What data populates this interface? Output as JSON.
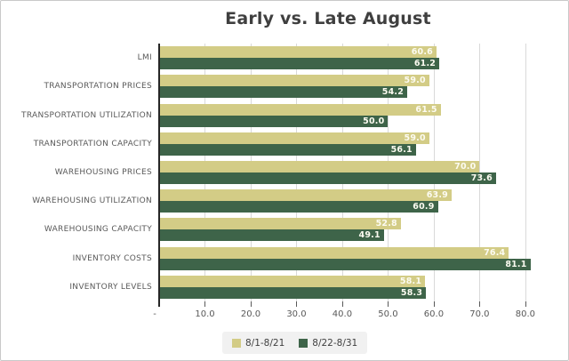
{
  "title": "Early vs. Late August",
  "chart_data": {
    "type": "bar",
    "orientation": "horizontal",
    "title": "Early vs. Late August",
    "categories": [
      "LMI",
      "TRANSPORTATION PRICES",
      "TRANSPORTATION UTILIZATION",
      "TRANSPORTATION CAPACITY",
      "WAREHOUSING PRICES",
      "WAREHOUSING UTILIZATION",
      "WAREHOUSING CAPACITY",
      "INVENTORY COSTS",
      "INVENTORY LEVELS"
    ],
    "series": [
      {
        "name": "8/1-8/21",
        "color": "#d3cc86",
        "values": [
          60.6,
          59.0,
          61.5,
          59.0,
          70.0,
          63.9,
          52.8,
          76.4,
          58.1
        ]
      },
      {
        "name": "8/22-8/31",
        "color": "#3e6449",
        "values": [
          61.2,
          54.2,
          50.0,
          56.1,
          73.6,
          60.9,
          49.1,
          81.1,
          58.3
        ]
      }
    ],
    "x_axis": {
      "tick_values": [
        0,
        10,
        20,
        30,
        40,
        50,
        60,
        70,
        80
      ],
      "tick_labels": [
        "-",
        "10.0",
        "20.0",
        "30.0",
        "40.0",
        "50.0",
        "60.0",
        "70.0",
        "80.0"
      ],
      "max": 87.4
    },
    "value_label_decimals": 1,
    "grid": true,
    "legend_position": "bottom"
  },
  "colors": {
    "title": "#3f3f3f",
    "axis_line": "#262626",
    "gridline": "#d9d9d9",
    "tick_label": "#595959",
    "category_label": "#595959",
    "value_label": "#fcfbf1",
    "legend_background": "#f1f1f1",
    "legend_text": "#404040",
    "frame_border": "#c9c9c9",
    "background": "#ffffff"
  }
}
